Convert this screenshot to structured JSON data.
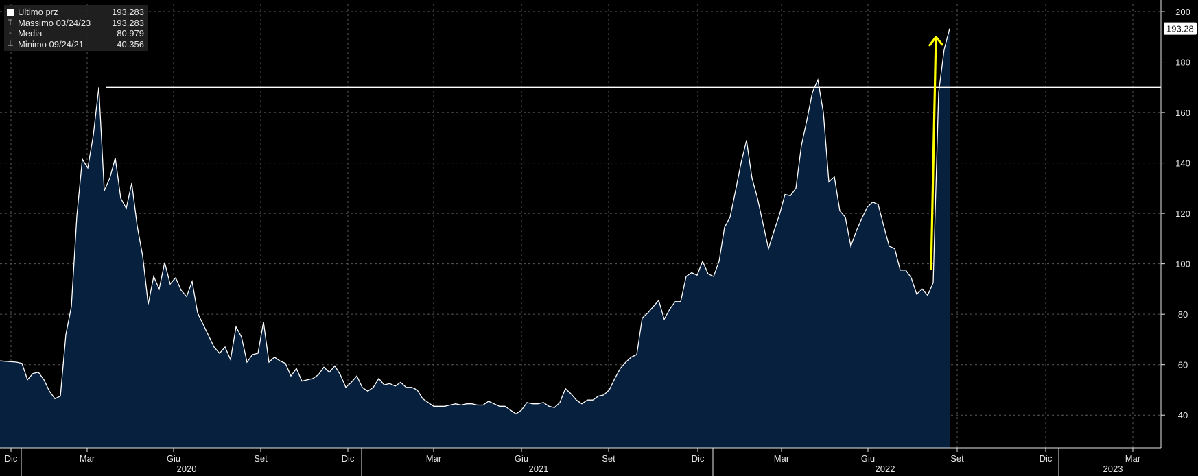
{
  "legend": {
    "items": [
      {
        "label": "Ultimo prz",
        "value": "193.283",
        "marker": "box"
      },
      {
        "label": "Massimo 03/24/23",
        "value": "193.283",
        "marker": "T"
      },
      {
        "label": "Media",
        "value": "80.979",
        "marker": "-"
      },
      {
        "label": "Minimo 09/24/21",
        "value": "40.356",
        "marker": "⊥"
      }
    ]
  },
  "last_price_label": "193.28",
  "colors": {
    "background": "#000000",
    "area_fill": "#06203d",
    "line": "#ffffff",
    "arrow": "#ffff00",
    "grid": "#5a5a5a",
    "axis": "#e6e6e6",
    "label_bg": "#ffffff"
  },
  "chart_data": {
    "type": "area",
    "ylim": [
      27,
      203
    ],
    "yticks": [
      40,
      60,
      80,
      100,
      120,
      140,
      160,
      180,
      200
    ],
    "xlim": [
      0,
      1746
    ],
    "month_ticks": [
      {
        "label": "Dic",
        "x": 16
      },
      {
        "label": "Mar",
        "x": 127
      },
      {
        "label": "Giu",
        "x": 253
      },
      {
        "label": "Set",
        "x": 380
      },
      {
        "label": "Dic",
        "x": 507
      },
      {
        "label": "Mar",
        "x": 632
      },
      {
        "label": "Giu",
        "x": 760
      },
      {
        "label": "Set",
        "x": 887
      },
      {
        "label": "Dic",
        "x": 1017
      },
      {
        "label": "Mar",
        "x": 1139
      },
      {
        "label": "Giu",
        "x": 1265
      },
      {
        "label": "Set",
        "x": 1395
      },
      {
        "label": "Dic",
        "x": 1524
      },
      {
        "label": "Mar",
        "x": 1651
      }
    ],
    "years": [
      {
        "label": "2020",
        "x": 272
      },
      {
        "label": "2021",
        "x": 785
      },
      {
        "label": "2022",
        "x": 1290
      },
      {
        "label": "2023",
        "x": 1622
      }
    ],
    "year_separators": [
      31,
      527,
      1039,
      1543
    ],
    "reference_line": {
      "value": 170,
      "x_start": 155,
      "x_end": 1692
    },
    "series": [
      {
        "name": "Ultimo prz",
        "points": [
          [
            0,
            61.5
          ],
          [
            24,
            61
          ],
          [
            32,
            60.5
          ],
          [
            40,
            54
          ],
          [
            48,
            56.5
          ],
          [
            56,
            57
          ],
          [
            64,
            54
          ],
          [
            72,
            49.5
          ],
          [
            80,
            46.5
          ],
          [
            88,
            47.5
          ],
          [
            96,
            72
          ],
          [
            104,
            83
          ],
          [
            112,
            119
          ],
          [
            120,
            141.5
          ],
          [
            128,
            138
          ],
          [
            136,
            151
          ],
          [
            144,
            170
          ],
          [
            152,
            129
          ],
          [
            160,
            134
          ],
          [
            168,
            142
          ],
          [
            176,
            126
          ],
          [
            184,
            122
          ],
          [
            192,
            132
          ],
          [
            200,
            115
          ],
          [
            208,
            103
          ],
          [
            216,
            84
          ],
          [
            224,
            95
          ],
          [
            232,
            90
          ],
          [
            240,
            100.5
          ],
          [
            248,
            92
          ],
          [
            256,
            94.5
          ],
          [
            264,
            89.5
          ],
          [
            272,
            87
          ],
          [
            280,
            93
          ],
          [
            288,
            80.5
          ],
          [
            296,
            76
          ],
          [
            304,
            71.5
          ],
          [
            312,
            67
          ],
          [
            320,
            64.5
          ],
          [
            328,
            67
          ],
          [
            336,
            62
          ],
          [
            344,
            75
          ],
          [
            352,
            71
          ],
          [
            360,
            61
          ],
          [
            368,
            64
          ],
          [
            376,
            64.5
          ],
          [
            384,
            77
          ],
          [
            392,
            61
          ],
          [
            400,
            63
          ],
          [
            408,
            61.5
          ],
          [
            416,
            60.5
          ],
          [
            424,
            55.5
          ],
          [
            432,
            58.5
          ],
          [
            440,
            53.5
          ],
          [
            448,
            54
          ],
          [
            456,
            54.5
          ],
          [
            464,
            56
          ],
          [
            472,
            59
          ],
          [
            480,
            57
          ],
          [
            488,
            59.5
          ],
          [
            496,
            56
          ],
          [
            504,
            51
          ],
          [
            512,
            53
          ],
          [
            520,
            55.5
          ],
          [
            528,
            51
          ],
          [
            536,
            49.5
          ],
          [
            544,
            51
          ],
          [
            552,
            54.5
          ],
          [
            560,
            52
          ],
          [
            568,
            52.5
          ],
          [
            576,
            51.5
          ],
          [
            584,
            53
          ],
          [
            592,
            51
          ],
          [
            600,
            51
          ],
          [
            608,
            50
          ],
          [
            616,
            46.5
          ],
          [
            624,
            45
          ],
          [
            632,
            43.5
          ],
          [
            640,
            43.5
          ],
          [
            648,
            43.5
          ],
          [
            656,
            44
          ],
          [
            664,
            44.5
          ],
          [
            672,
            44
          ],
          [
            680,
            44.5
          ],
          [
            688,
            44.5
          ],
          [
            696,
            44
          ],
          [
            704,
            44
          ],
          [
            712,
            45.5
          ],
          [
            720,
            44.5
          ],
          [
            728,
            43.5
          ],
          [
            736,
            43.5
          ],
          [
            744,
            42
          ],
          [
            752,
            40.5
          ],
          [
            760,
            42
          ],
          [
            768,
            45
          ],
          [
            776,
            44.5
          ],
          [
            784,
            44.5
          ],
          [
            792,
            45
          ],
          [
            800,
            43.5
          ],
          [
            808,
            43
          ],
          [
            816,
            45
          ],
          [
            824,
            50.5
          ],
          [
            832,
            48.5
          ],
          [
            840,
            46
          ],
          [
            848,
            44.5
          ],
          [
            856,
            46
          ],
          [
            864,
            46
          ],
          [
            872,
            47.5
          ],
          [
            880,
            48
          ],
          [
            888,
            50
          ],
          [
            896,
            54.5
          ],
          [
            904,
            58.5
          ],
          [
            912,
            61
          ],
          [
            920,
            63
          ],
          [
            928,
            64
          ],
          [
            936,
            78.5
          ],
          [
            944,
            80.5
          ],
          [
            952,
            83
          ],
          [
            960,
            85.5
          ],
          [
            968,
            78
          ],
          [
            976,
            82
          ],
          [
            984,
            85
          ],
          [
            992,
            85
          ],
          [
            1000,
            95
          ],
          [
            1008,
            96.5
          ],
          [
            1016,
            95.5
          ],
          [
            1024,
            101
          ],
          [
            1032,
            96
          ],
          [
            1040,
            95
          ],
          [
            1048,
            101
          ],
          [
            1056,
            114.5
          ],
          [
            1064,
            118.5
          ],
          [
            1072,
            129
          ],
          [
            1080,
            140
          ],
          [
            1088,
            149
          ],
          [
            1096,
            134
          ],
          [
            1104,
            126
          ],
          [
            1112,
            116
          ],
          [
            1120,
            106
          ],
          [
            1128,
            113
          ],
          [
            1136,
            119.5
          ],
          [
            1144,
            127.5
          ],
          [
            1152,
            127
          ],
          [
            1160,
            130
          ],
          [
            1168,
            147
          ],
          [
            1176,
            157
          ],
          [
            1184,
            168
          ],
          [
            1192,
            173
          ],
          [
            1200,
            160
          ],
          [
            1208,
            132.5
          ],
          [
            1216,
            134.5
          ],
          [
            1224,
            121
          ],
          [
            1232,
            118.5
          ],
          [
            1240,
            107
          ],
          [
            1248,
            113
          ],
          [
            1256,
            118
          ],
          [
            1264,
            122.5
          ],
          [
            1272,
            124.5
          ],
          [
            1280,
            123.5
          ],
          [
            1288,
            115
          ],
          [
            1296,
            107
          ],
          [
            1304,
            106
          ],
          [
            1312,
            97.5
          ],
          [
            1320,
            97.5
          ],
          [
            1328,
            94.5
          ],
          [
            1336,
            88
          ],
          [
            1344,
            90
          ],
          [
            1352,
            87.5
          ],
          [
            1360,
            92.5
          ],
          [
            1368,
            168
          ],
          [
            1376,
            185
          ],
          [
            1384,
            193.3
          ]
        ]
      }
    ],
    "annotation_arrow": {
      "from": [
        1357,
        98
      ],
      "to": [
        1364,
        190
      ]
    }
  }
}
